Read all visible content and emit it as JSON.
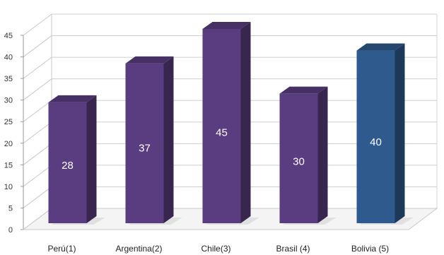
{
  "chart_data": {
    "type": "bar",
    "title": "",
    "xlabel": "",
    "ylabel": "",
    "ylim": [
      0,
      45
    ],
    "yticks": [
      0,
      5,
      10,
      15,
      20,
      25,
      30,
      35,
      40,
      45
    ],
    "grid": true,
    "legend": "none",
    "categories": [
      "Perú(1)",
      "Argentina(2)",
      "Chile(3)",
      "Brasil (4)",
      "Bolivia (5)"
    ],
    "values": [
      28,
      37,
      45,
      30,
      40
    ],
    "data_labels": [
      "28",
      "37",
      "45",
      "30",
      "40"
    ],
    "bar_colors": [
      "#5a3d80",
      "#5a3d80",
      "#5a3d80",
      "#5a3d80",
      "#2f5a8e"
    ]
  }
}
